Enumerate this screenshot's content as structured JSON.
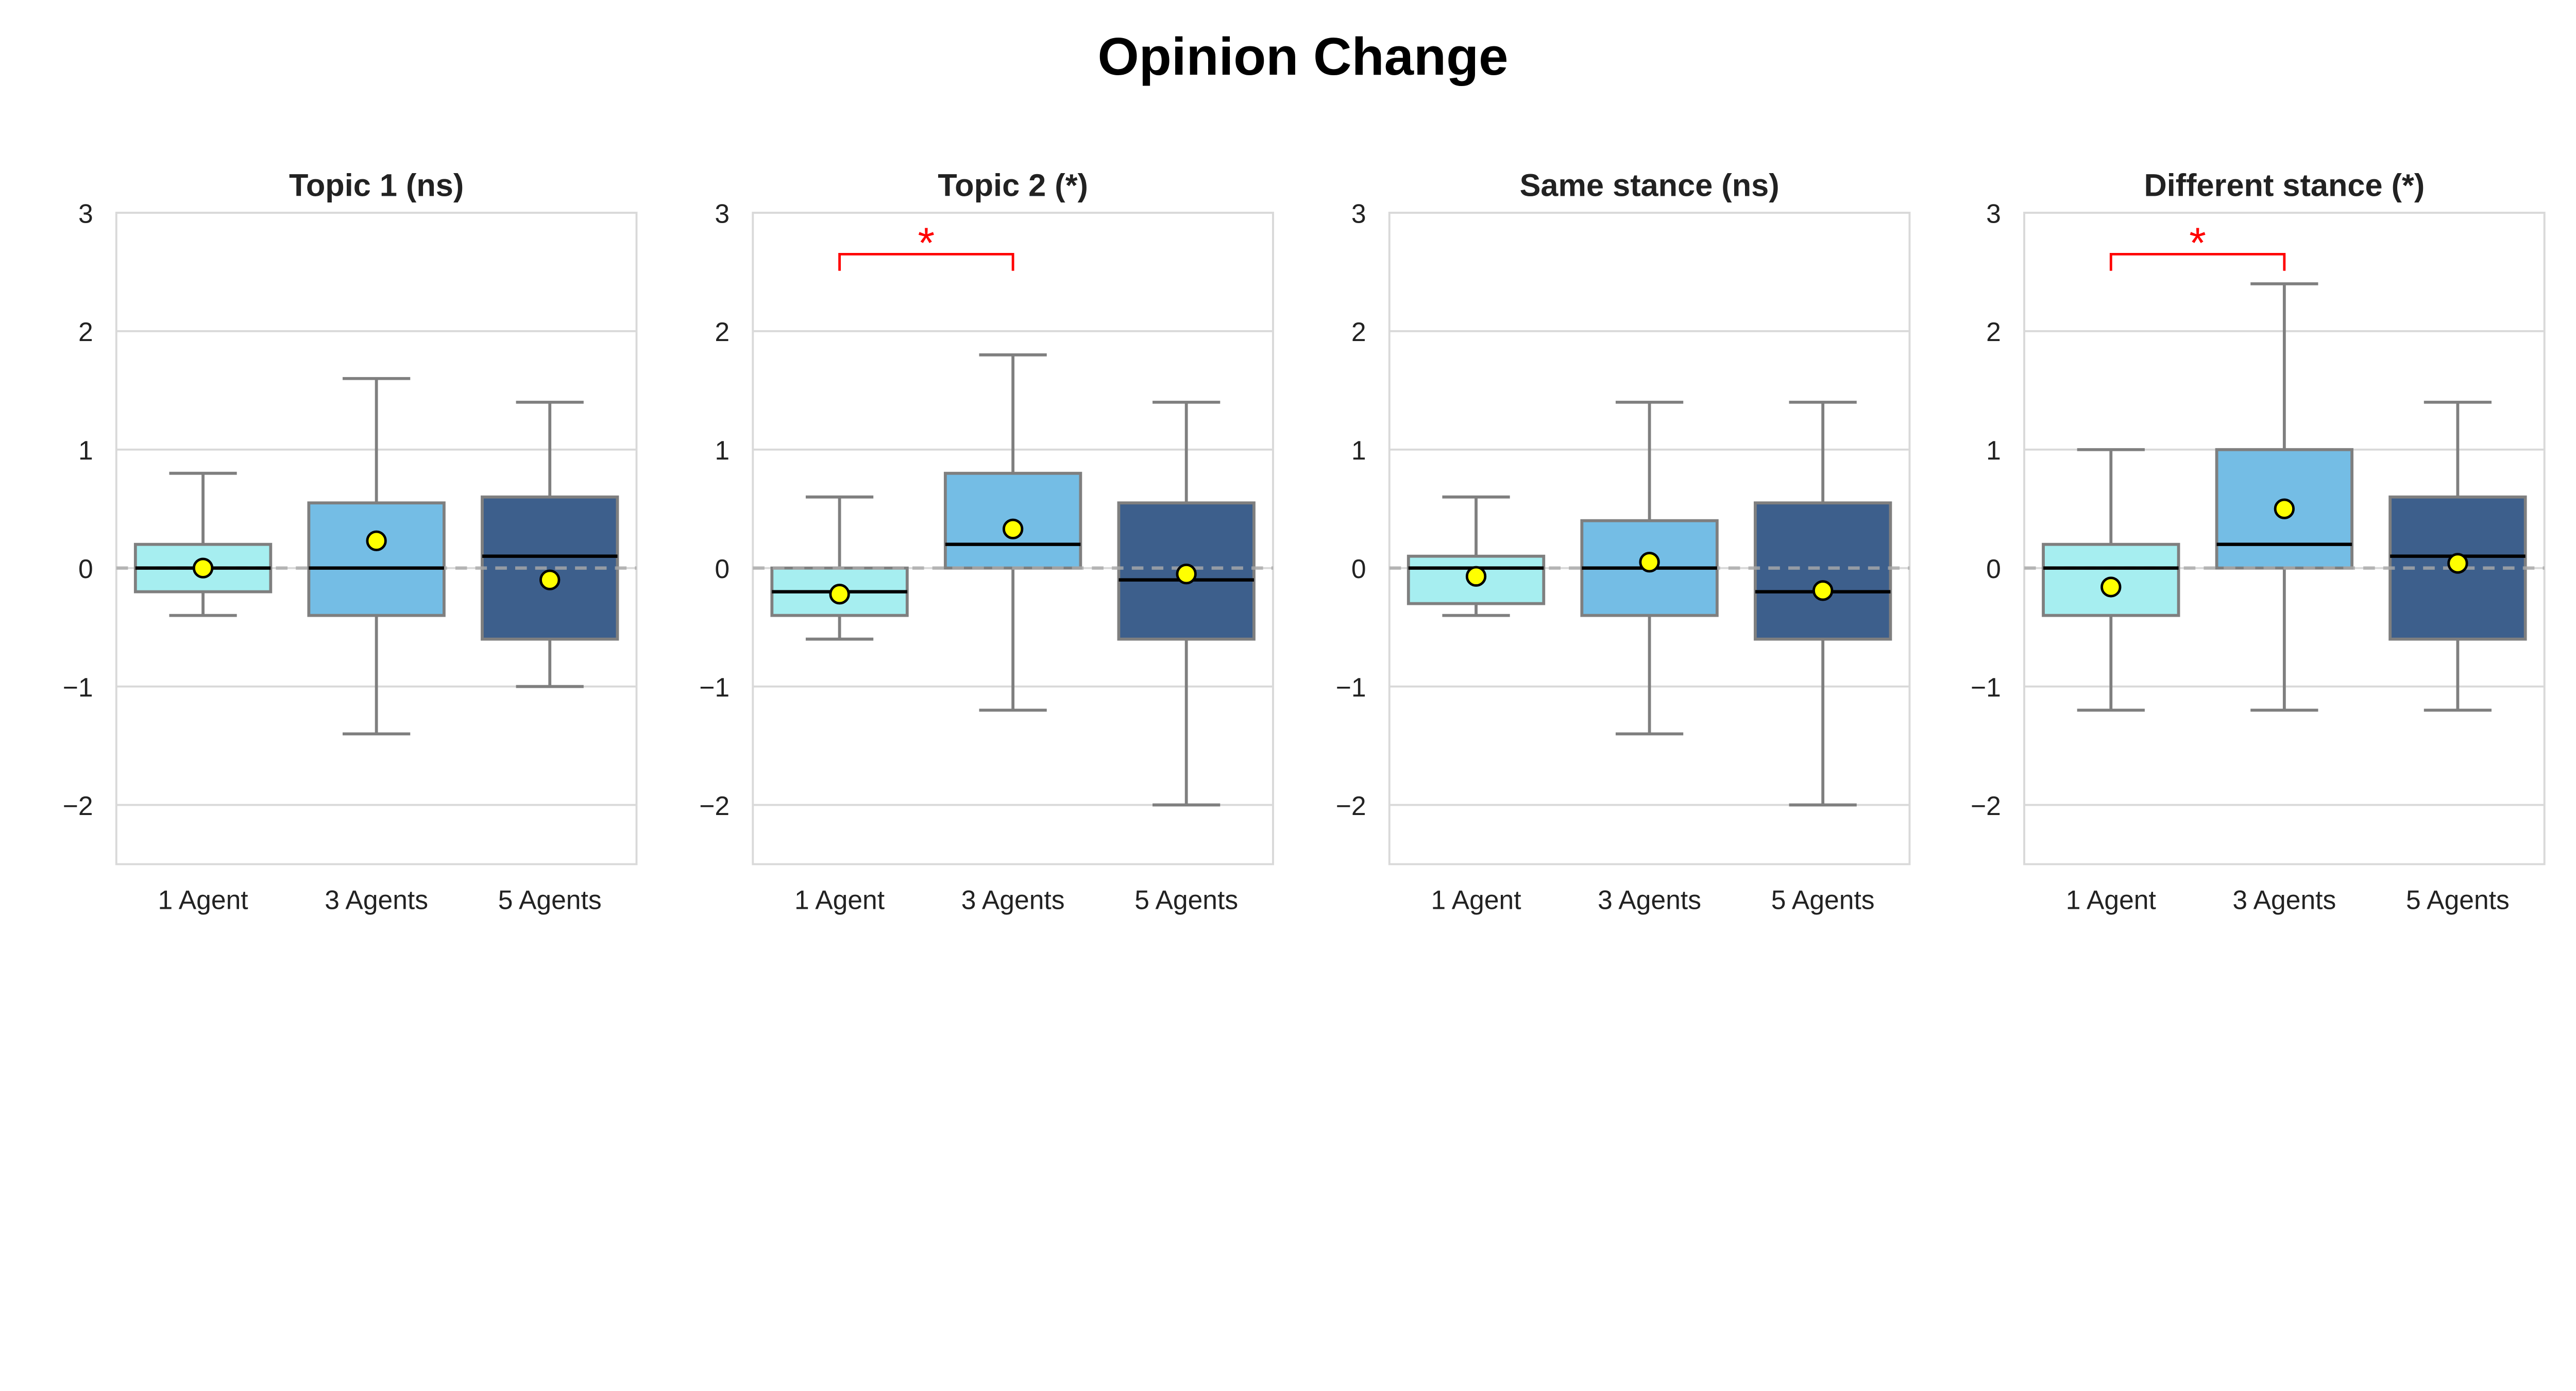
{
  "chart_data": {
    "type": "box",
    "title": "Opinion Change",
    "categories": [
      "1 Agent",
      "3 Agents",
      "5 Agents"
    ],
    "colors": {
      "1 Agent": "#a6eef0",
      "3 Agents": "#74bde5",
      "5 Agents": "#3d5f8c",
      "mean_marker": "#ffff00",
      "significance": "#ff0000",
      "whisker": "#7f7f7f",
      "grid": "#d9d9d9"
    },
    "ylim": [
      -2.5,
      3
    ],
    "yticks": [
      -2,
      -1,
      0,
      1,
      2,
      3
    ],
    "ytick_labels": [
      "−2",
      "−1",
      "0",
      "1",
      "2",
      "3"
    ],
    "grid": true,
    "reference_line": 0,
    "panels": [
      {
        "title": "Topic 1 (ns)",
        "boxes": [
          {
            "category": "1 Agent",
            "whislo": -0.4,
            "q1": -0.2,
            "median": 0,
            "q3": 0.2,
            "whishi": 0.8,
            "mean": 0.0
          },
          {
            "category": "3 Agents",
            "whislo": -1.4,
            "q1": -0.4,
            "median": 0,
            "q3": 0.55,
            "whishi": 1.6,
            "mean": 0.23
          },
          {
            "category": "5 Agents",
            "whislo": -1.0,
            "q1": -0.6,
            "median": 0.1,
            "q3": 0.6,
            "whishi": 1.4,
            "mean": -0.1
          }
        ],
        "annotations": []
      },
      {
        "title": "Topic 2 (*)",
        "boxes": [
          {
            "category": "1 Agent",
            "whislo": -0.6,
            "q1": -0.4,
            "median": -0.2,
            "q3": 0,
            "whishi": 0.6,
            "mean": -0.22
          },
          {
            "category": "3 Agents",
            "whislo": -1.2,
            "q1": 0,
            "median": 0.2,
            "q3": 0.8,
            "whishi": 1.8,
            "mean": 0.33
          },
          {
            "category": "5 Agents",
            "whislo": -2.0,
            "q1": -0.6,
            "median": -0.1,
            "q3": 0.55,
            "whishi": 1.4,
            "mean": -0.05
          }
        ],
        "annotations": [
          {
            "from": "1 Agent",
            "to": "3 Agents",
            "text": "*",
            "y": 2.65
          }
        ]
      },
      {
        "title": "Same stance (ns)",
        "boxes": [
          {
            "category": "1 Agent",
            "whislo": -0.4,
            "q1": -0.3,
            "median": 0,
            "q3": 0.1,
            "whishi": 0.6,
            "mean": -0.07
          },
          {
            "category": "3 Agents",
            "whislo": -1.4,
            "q1": -0.4,
            "median": 0,
            "q3": 0.4,
            "whishi": 1.4,
            "mean": 0.05
          },
          {
            "category": "5 Agents",
            "whislo": -2.0,
            "q1": -0.6,
            "median": -0.2,
            "q3": 0.55,
            "whishi": 1.4,
            "mean": -0.19
          }
        ],
        "annotations": []
      },
      {
        "title": "Different stance (*)",
        "boxes": [
          {
            "category": "1 Agent",
            "whislo": -1.2,
            "q1": -0.4,
            "median": 0,
            "q3": 0.2,
            "whishi": 1.0,
            "mean": -0.16
          },
          {
            "category": "3 Agents",
            "whislo": -1.2,
            "q1": 0,
            "median": 0.2,
            "q3": 1.0,
            "whishi": 2.4,
            "mean": 0.5
          },
          {
            "category": "5 Agents",
            "whislo": -1.2,
            "q1": -0.6,
            "median": 0.1,
            "q3": 0.6,
            "whishi": 1.4,
            "mean": 0.04
          }
        ],
        "annotations": [
          {
            "from": "1 Agent",
            "to": "3 Agents",
            "text": "*",
            "y": 2.65
          }
        ]
      }
    ]
  }
}
